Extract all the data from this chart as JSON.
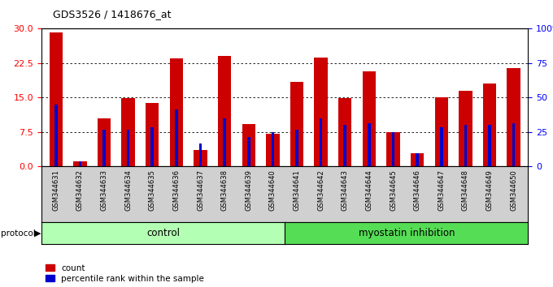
{
  "title": "GDS3526 / 1418676_at",
  "samples": [
    "GSM344631",
    "GSM344632",
    "GSM344633",
    "GSM344634",
    "GSM344635",
    "GSM344636",
    "GSM344637",
    "GSM344638",
    "GSM344639",
    "GSM344640",
    "GSM344641",
    "GSM344642",
    "GSM344643",
    "GSM344644",
    "GSM344645",
    "GSM344646",
    "GSM344647",
    "GSM344648",
    "GSM344649",
    "GSM344650"
  ],
  "count_values": [
    29.2,
    1.2,
    10.5,
    14.9,
    13.8,
    23.5,
    3.5,
    24.0,
    9.2,
    7.2,
    18.5,
    23.8,
    14.9,
    20.8,
    7.5,
    2.8,
    15.0,
    16.5,
    18.0,
    21.5
  ],
  "percentile_values": [
    13.5,
    1.2,
    8.0,
    8.0,
    8.5,
    12.5,
    5.0,
    10.5,
    6.5,
    7.5,
    8.0,
    10.5,
    9.0,
    9.5,
    7.5,
    2.8,
    8.5,
    9.0,
    9.0,
    9.5
  ],
  "control_count": 10,
  "myostatin_count": 10,
  "control_color": "#b3ffb3",
  "myostatin_color": "#55dd55",
  "bar_color_red": "#cc0000",
  "bar_color_blue": "#0000cc",
  "left_yticks": [
    0,
    7.5,
    15,
    22.5,
    30
  ],
  "right_yticklabels": [
    "0",
    "25",
    "50",
    "75",
    "100%"
  ],
  "ylim": [
    0,
    30
  ],
  "xtick_bg_color": "#d0d0d0",
  "protocol_bg_color": "#c8c8c8"
}
